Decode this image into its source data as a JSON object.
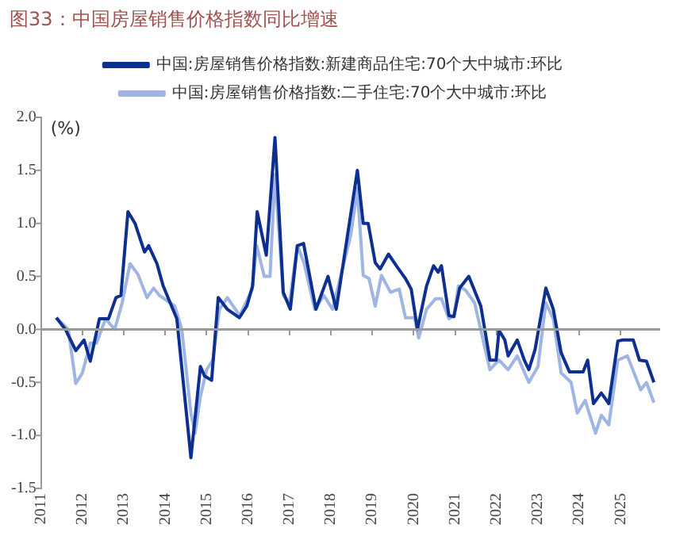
{
  "chart_data": {
    "type": "line",
    "title": "图33：中国房屋销售价格指数同比增速",
    "ylabel": "(%)",
    "legend": "top",
    "grid": false,
    "marker": "none",
    "line_style": "solid",
    "xlim": [
      2011,
      2025.95
    ],
    "xticks": [
      2011,
      2012,
      2013,
      2014,
      2015,
      2016,
      2017,
      2018,
      2019,
      2020,
      2021,
      2022,
      2023,
      2024,
      2025
    ],
    "ylim": [
      -1.5,
      2.0
    ],
    "yticks": [
      {
        "value": 2.0,
        "label": "2.0"
      },
      1.5,
      {
        "value": 1.0,
        "label": "1.0"
      },
      0.5,
      {
        "value": 0.0,
        "label": "0.0"
      },
      -0.5,
      {
        "value": -1.0,
        "label": "-1.0"
      },
      -1.5
    ],
    "ref_lines": [
      {
        "axis": "y",
        "value": 0,
        "color": "#999999"
      }
    ],
    "series": [
      {
        "name": "中国:房屋销售价格指数:新建商品住宅:70个大中城市:环比",
        "color": "#0d2f8f",
        "x": [
          2011.37,
          2011.59,
          2011.84,
          2012.04,
          2012.19,
          2012.41,
          2012.63,
          2012.81,
          2012.93,
          2013.1,
          2013.27,
          2013.5,
          2013.6,
          2013.8,
          2013.95,
          2014.28,
          2014.62,
          2014.85,
          2014.95,
          2015.12,
          2015.28,
          2015.5,
          2015.79,
          2015.97,
          2016.11,
          2016.22,
          2016.44,
          2016.65,
          2016.85,
          2017.02,
          2017.19,
          2017.34,
          2017.64,
          2017.93,
          2018.13,
          2018.5,
          2018.64,
          2018.78,
          2018.9,
          2019.07,
          2019.19,
          2019.39,
          2019.58,
          2019.8,
          2019.94,
          2020.09,
          2020.31,
          2020.48,
          2020.59,
          2020.67,
          2020.85,
          2020.97,
          2021.11,
          2021.33,
          2021.62,
          2021.84,
          2021.99,
          2022.06,
          2022.2,
          2022.28,
          2022.5,
          2022.67,
          2022.78,
          2022.93,
          2023.19,
          2023.37,
          2023.56,
          2023.76,
          2024.09,
          2024.2,
          2024.34,
          2024.53,
          2024.71,
          2024.93,
          2025.05,
          2025.3,
          2025.45,
          2025.62,
          2025.8
        ],
        "values": [
          0.11,
          0,
          -0.2,
          -0.1,
          -0.3,
          0.1,
          0.1,
          0.3,
          0.32,
          1.11,
          1.0,
          0.73,
          0.79,
          0.62,
          0.41,
          0.1,
          -1.21,
          -0.35,
          -0.44,
          -0.48,
          0.3,
          0.19,
          0.11,
          0.22,
          0.41,
          1.11,
          0.7,
          1.81,
          0.35,
          0.19,
          0.79,
          0.81,
          0.19,
          0.5,
          0.19,
          1.14,
          1.5,
          1.0,
          1.0,
          0.63,
          0.57,
          0.71,
          0.6,
          0.48,
          0.38,
          0,
          0.41,
          0.6,
          0.54,
          0.6,
          0.13,
          0.12,
          0.39,
          0.5,
          0.22,
          -0.29,
          -0.29,
          -0.01,
          -0.1,
          -0.25,
          -0.1,
          -0.29,
          -0.38,
          -0.19,
          0.39,
          0.19,
          -0.22,
          -0.4,
          -0.4,
          -0.29,
          -0.7,
          -0.6,
          -0.7,
          -0.11,
          -0.1,
          -0.1,
          -0.29,
          -0.3,
          -0.5
        ]
      },
      {
        "name": "中国:房屋销售价格指数:二手住宅:70个大中城市:环比",
        "color": "#9fb5e3",
        "x": [
          2011.37,
          2011.66,
          2011.84,
          2012.0,
          2012.19,
          2012.34,
          2012.56,
          2012.78,
          2012.96,
          2013.15,
          2013.34,
          2013.56,
          2013.72,
          2013.86,
          2014.23,
          2014.4,
          2014.62,
          2014.72,
          2014.85,
          2015.0,
          2015.15,
          2015.31,
          2015.5,
          2015.8,
          2016.1,
          2016.21,
          2016.39,
          2016.53,
          2016.65,
          2016.85,
          2017.0,
          2017.19,
          2017.35,
          2017.61,
          2017.83,
          2018.04,
          2018.48,
          2018.64,
          2018.78,
          2018.92,
          2019.07,
          2019.22,
          2019.44,
          2019.65,
          2019.8,
          2020.02,
          2020.12,
          2020.31,
          2020.53,
          2020.67,
          2020.85,
          2020.97,
          2021.08,
          2021.25,
          2021.47,
          2021.84,
          2022.06,
          2022.28,
          2022.5,
          2022.78,
          2023.0,
          2023.19,
          2023.37,
          2023.56,
          2023.8,
          2023.95,
          2024.14,
          2024.39,
          2024.53,
          2024.71,
          2024.93,
          2025.16,
          2025.48,
          2025.62,
          2025.8
        ],
        "values": [
          0.11,
          0,
          -0.51,
          -0.41,
          -0.13,
          -0.13,
          0.1,
          0,
          0.25,
          0.62,
          0.52,
          0.3,
          0.39,
          0.32,
          0.22,
          0,
          -0.79,
          -0.98,
          -0.63,
          -0.38,
          -0.29,
          0.19,
          0.3,
          0.13,
          0.38,
          0.79,
          0.5,
          0.5,
          1.46,
          0.32,
          0.25,
          0.79,
          0.63,
          0.19,
          0.32,
          0.19,
          0.89,
          1.33,
          0.51,
          0.48,
          0.22,
          0.51,
          0.35,
          0.38,
          0.11,
          0.11,
          -0.08,
          0.19,
          0.29,
          0.29,
          0.1,
          0.13,
          0.41,
          0.37,
          0.25,
          -0.38,
          -0.29,
          -0.38,
          -0.25,
          -0.5,
          -0.35,
          0.25,
          0.1,
          -0.41,
          -0.5,
          -0.79,
          -0.67,
          -0.98,
          -0.81,
          -0.9,
          -0.29,
          -0.25,
          -0.57,
          -0.5,
          -0.69
        ]
      }
    ]
  }
}
